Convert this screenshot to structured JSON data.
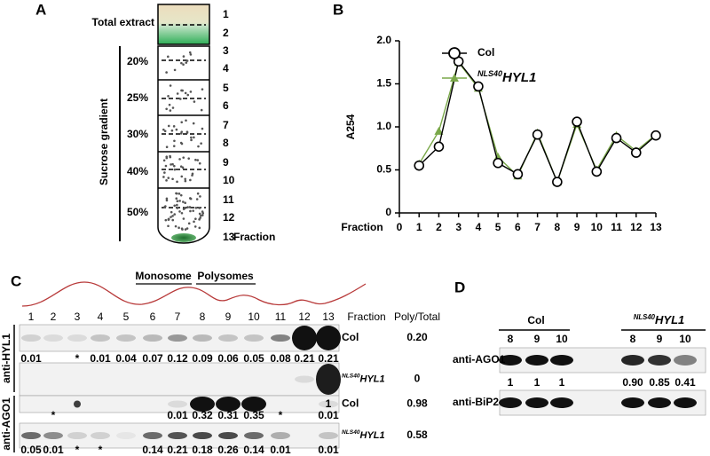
{
  "panel_a": {
    "label": "A",
    "total_extract": "Total extract",
    "fractions": [
      "1",
      "2",
      "3",
      "4",
      "5",
      "6",
      "7",
      "8",
      "9",
      "10",
      "11",
      "12",
      "13"
    ],
    "fraction_label": "Fraction",
    "gradient_label": "Sucrose gradient",
    "percentages": [
      "20%",
      "25%",
      "30%",
      "40%",
      "50%"
    ]
  },
  "chart_data": {
    "type": "line",
    "panel_label": "B",
    "xlabel": "Fraction",
    "ylabel": "A254",
    "x": [
      1,
      2,
      3,
      4,
      5,
      6,
      7,
      8,
      9,
      10,
      11,
      12,
      13
    ],
    "xlim": [
      0,
      13
    ],
    "ylim": [
      0,
      2
    ],
    "xticks": [
      0,
      1,
      2,
      3,
      4,
      5,
      6,
      7,
      8,
      9,
      10,
      11,
      12,
      13
    ],
    "yticks": [
      0,
      0.5,
      {
        "value": 1,
        "label": "1.0"
      },
      1.5,
      {
        "value": 2,
        "label": "2.0"
      }
    ],
    "legend": "upper center",
    "series": [
      {
        "name": "Col",
        "color": "#000000",
        "marker": "circle",
        "values": [
          0.55,
          0.77,
          1.76,
          1.47,
          0.58,
          0.45,
          0.91,
          0.36,
          1.06,
          0.48,
          0.87,
          0.7,
          0.9
        ]
      },
      {
        "name": "HYL1",
        "name_sup": "NLS40",
        "color": "#7aa84a",
        "marker": "triangle",
        "values": [
          0.57,
          0.95,
          1.75,
          1.45,
          0.65,
          0.43,
          0.93,
          0.36,
          1.03,
          0.5,
          0.9,
          0.72,
          0.91
        ]
      }
    ]
  },
  "panel_c": {
    "label": "C",
    "monosome": "Monosome",
    "polysomes": "Polysomes",
    "lanes": [
      "1",
      "2",
      "3",
      "4",
      "5",
      "6",
      "7",
      "8",
      "9",
      "10",
      "11",
      "12",
      "13"
    ],
    "fraction_label": "Fraction",
    "ratio_header": "Poly/Total",
    "antibodies": [
      "anti-HYL1",
      "anti-AGO1"
    ],
    "rows": [
      {
        "genotype": "Col",
        "ratio": "0.20",
        "values": [
          "0.01",
          null,
          "*",
          "0.01",
          "0.04",
          "0.07",
          "0.12",
          "0.09",
          "0.06",
          "0.05",
          "0.08",
          "0.21",
          "0.21"
        ]
      },
      {
        "genotype": "HYL1",
        "genotype_sup": "NLS40",
        "ratio": "0",
        "values": [
          null,
          null,
          null,
          null,
          null,
          null,
          null,
          null,
          null,
          null,
          null,
          null,
          "1"
        ]
      },
      {
        "genotype": "Col",
        "ratio": "0.98",
        "values": [
          null,
          "*",
          null,
          null,
          null,
          null,
          "0.01",
          "0.32",
          "0.31",
          "0.35",
          "*",
          null,
          "0.01"
        ]
      },
      {
        "genotype": "HYL1",
        "genotype_sup": "NLS40",
        "ratio": "0.58",
        "values": [
          "0.05",
          "0.01",
          "*",
          "*",
          null,
          "0.14",
          "0.21",
          "0.18",
          "0.26",
          "0.14",
          "0.01",
          null,
          "0.01"
        ]
      }
    ]
  },
  "panel_d": {
    "label": "D",
    "groups": [
      {
        "genotype": "Col",
        "lanes": [
          "8",
          "9",
          "10"
        ],
        "values": [
          "1",
          "1",
          "1"
        ]
      },
      {
        "genotype": "HYL1",
        "genotype_sup": "NLS40",
        "lanes": [
          "8",
          "9",
          "10"
        ],
        "values": [
          "0.90",
          "0.85",
          "0.41"
        ]
      }
    ],
    "antibodies": [
      "anti-AGO1",
      "anti-BiP2"
    ]
  }
}
